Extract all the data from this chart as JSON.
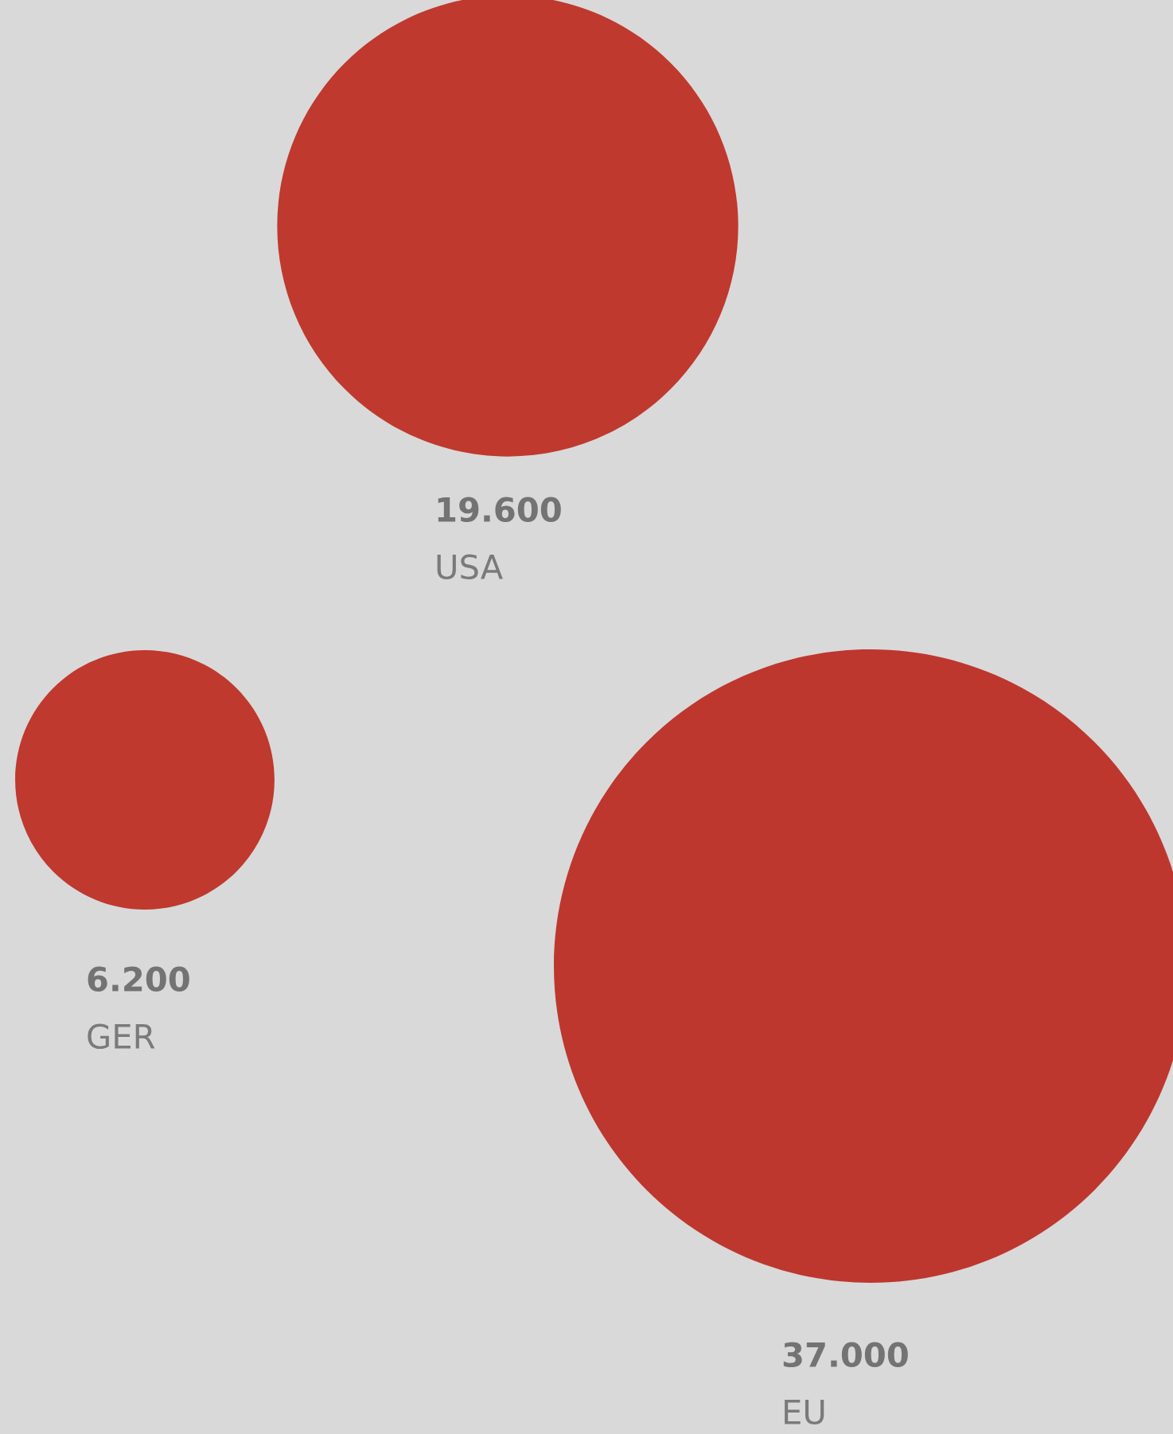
{
  "chart_data": {
    "type": "other",
    "categories": [
      "USA",
      "GER",
      "EU"
    ],
    "values": [
      19600,
      6200,
      37000
    ],
    "value_labels": [
      "19.600",
      "6.200",
      "37.000"
    ],
    "colors": [
      "#bf392e",
      "#bf392e",
      "#bd372e"
    ]
  }
}
